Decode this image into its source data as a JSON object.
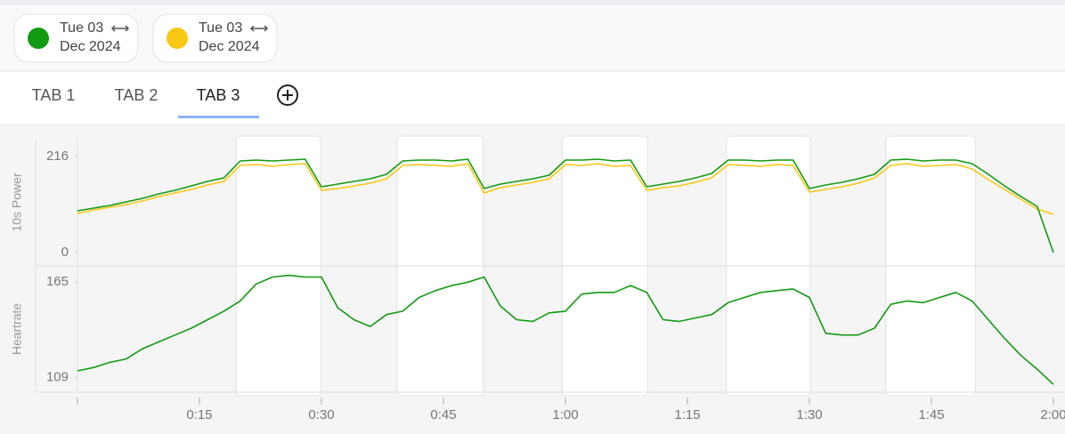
{
  "chips": [
    {
      "day": "Tue 03",
      "month": "Dec 2024",
      "color": "#129a12"
    },
    {
      "day": "Tue 03",
      "month": "Dec 2024",
      "color": "#f8c814"
    }
  ],
  "tabs": [
    "TAB 1",
    "TAB 2",
    "TAB 3"
  ],
  "active_tab": 2,
  "intervals": [
    [
      19.5,
      29.9
    ],
    [
      39.3,
      49.9
    ],
    [
      59.6,
      70.1
    ],
    [
      79.8,
      90.1
    ],
    [
      99.4,
      110.4
    ]
  ],
  "chart_data": [
    {
      "type": "line",
      "y_label": "10s Power",
      "x": [
        0,
        2,
        4,
        6,
        8,
        10,
        12,
        14,
        16,
        18,
        20,
        22,
        24,
        26,
        28,
        30,
        32,
        34,
        36,
        38,
        40,
        42,
        44,
        46,
        48,
        50,
        52,
        54,
        56,
        58,
        60,
        62,
        64,
        66,
        68,
        70,
        72,
        74,
        76,
        78,
        80,
        82,
        84,
        86,
        88,
        90,
        92,
        94,
        96,
        98,
        100,
        102,
        104,
        106,
        108,
        110,
        112,
        114,
        116,
        118,
        120
      ],
      "xlim": [
        0,
        120
      ],
      "ylim": [
        -28,
        254
      ],
      "yticks": [
        0,
        216
      ],
      "series": [
        {
          "color": "#f8c814",
          "values": [
            88,
            96,
            102,
            108,
            116,
            126,
            134,
            142,
            152,
            160,
            196,
            198,
            194,
            198,
            200,
            140,
            144,
            150,
            156,
            166,
            196,
            198,
            196,
            194,
            200,
            134,
            146,
            152,
            158,
            166,
            198,
            196,
            200,
            194,
            196,
            140,
            146,
            150,
            158,
            168,
            198,
            196,
            194,
            198,
            196,
            136,
            142,
            148,
            156,
            168,
            196,
            200,
            194,
            196,
            198,
            188,
            164,
            142,
            120,
            98,
            86
          ]
        },
        {
          "color": "#129a12",
          "values": [
            94,
            100,
            106,
            114,
            122,
            132,
            140,
            150,
            160,
            168,
            206,
            208,
            206,
            208,
            210,
            148,
            154,
            160,
            166,
            176,
            206,
            208,
            208,
            206,
            210,
            144,
            154,
            160,
            166,
            174,
            208,
            208,
            210,
            206,
            208,
            148,
            154,
            160,
            168,
            178,
            208,
            208,
            206,
            208,
            208,
            144,
            152,
            158,
            166,
            176,
            208,
            210,
            206,
            208,
            208,
            200,
            176,
            150,
            126,
            104,
            0
          ]
        }
      ]
    },
    {
      "type": "line",
      "y_label": "Heartrate",
      "x": [
        0,
        2,
        4,
        6,
        8,
        10,
        12,
        14,
        16,
        18,
        20,
        22,
        24,
        26,
        28,
        30,
        32,
        34,
        36,
        38,
        40,
        42,
        44,
        46,
        48,
        50,
        52,
        54,
        56,
        58,
        60,
        62,
        64,
        66,
        68,
        70,
        72,
        74,
        76,
        78,
        80,
        82,
        84,
        86,
        88,
        90,
        92,
        94,
        96,
        98,
        100,
        102,
        104,
        106,
        108,
        110,
        112,
        114,
        116,
        118,
        120
      ],
      "xlim": [
        0,
        120
      ],
      "xticks": [
        {
          "value": 0,
          "label": null
        },
        {
          "value": 15,
          "label": "0:15"
        },
        {
          "value": 30,
          "label": "0:30"
        },
        {
          "value": 45,
          "label": "0:45"
        },
        {
          "value": 60,
          "label": "1:00"
        },
        {
          "value": 75,
          "label": "1:15"
        },
        {
          "value": 90,
          "label": "1:30"
        },
        {
          "value": 105,
          "label": "1:45"
        },
        {
          "value": 120,
          "label": "2:00"
        }
      ],
      "ylim": [
        101,
        174
      ],
      "yticks": [
        109,
        165
      ],
      "series": [
        {
          "color": "#129a12",
          "values": [
            113,
            115,
            118,
            120,
            126,
            130,
            134,
            138,
            143,
            148,
            154,
            164,
            168,
            169,
            168,
            168,
            150,
            143,
            139,
            146,
            148,
            156,
            160,
            163,
            165,
            168,
            151,
            143,
            142,
            147,
            148,
            158,
            159,
            159,
            163,
            159,
            143,
            142,
            144,
            146,
            153,
            156,
            159,
            160,
            161,
            156,
            135,
            134,
            134,
            138,
            152,
            154,
            153,
            156,
            159,
            154,
            143,
            132,
            122,
            114,
            105
          ]
        }
      ]
    }
  ]
}
